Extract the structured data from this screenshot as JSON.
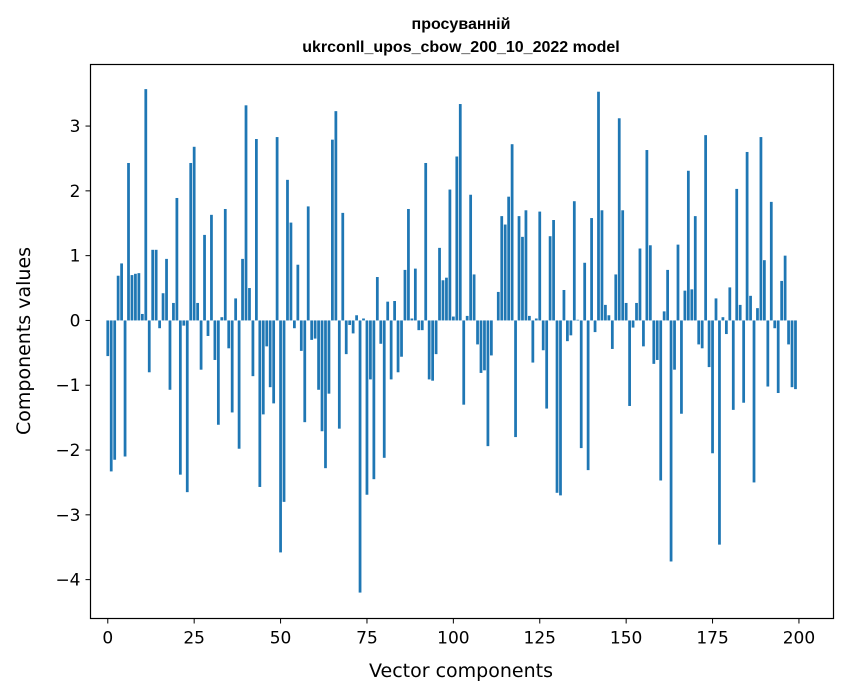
{
  "chart_data": {
    "type": "bar",
    "title_line1": "просуванній",
    "title_line2": "ukrconll_upos_cbow_200_10_2022 model",
    "xlabel": "Vector components",
    "ylabel": "Components values",
    "xlim": [
      -5,
      210
    ],
    "ylim": [
      -4.6,
      3.95
    ],
    "xticks": [
      0,
      25,
      50,
      75,
      100,
      125,
      150,
      175,
      200
    ],
    "xtick_labels": [
      "0",
      "25",
      "50",
      "75",
      "100",
      "125",
      "150",
      "175",
      "200"
    ],
    "yticks": [
      -4,
      -3,
      -2,
      -1,
      0,
      1,
      2,
      3
    ],
    "ytick_labels": [
      "−4",
      "−3",
      "−2",
      "−1",
      "0",
      "1",
      "2",
      "3"
    ],
    "bar_color": "#1f77b4",
    "x": [
      0,
      1,
      2,
      3,
      4,
      5,
      6,
      7,
      8,
      9,
      10,
      11,
      12,
      13,
      14,
      15,
      16,
      17,
      18,
      19,
      20,
      21,
      22,
      23,
      24,
      25,
      26,
      27,
      28,
      29,
      30,
      31,
      32,
      33,
      34,
      35,
      36,
      37,
      38,
      39,
      40,
      41,
      42,
      43,
      44,
      45,
      46,
      47,
      48,
      49,
      50,
      51,
      52,
      53,
      54,
      55,
      56,
      57,
      58,
      59,
      60,
      61,
      62,
      63,
      64,
      65,
      66,
      67,
      68,
      69,
      70,
      71,
      72,
      73,
      74,
      75,
      76,
      77,
      78,
      79,
      80,
      81,
      82,
      83,
      84,
      85,
      86,
      87,
      88,
      89,
      90,
      91,
      92,
      93,
      94,
      95,
      96,
      97,
      98,
      99,
      100,
      101,
      102,
      103,
      104,
      105,
      106,
      107,
      108,
      109,
      110,
      111,
      112,
      113,
      114,
      115,
      116,
      117,
      118,
      119,
      120,
      121,
      122,
      123,
      124,
      125,
      126,
      127,
      128,
      129,
      130,
      131,
      132,
      133,
      134,
      135,
      136,
      137,
      138,
      139,
      140,
      141,
      142,
      143,
      144,
      145,
      146,
      147,
      148,
      149,
      150,
      151,
      152,
      153,
      154,
      155,
      156,
      157,
      158,
      159,
      160,
      161,
      162,
      163,
      164,
      165,
      166,
      167,
      168,
      169,
      170,
      171,
      172,
      173,
      174,
      175,
      176,
      177,
      178,
      179,
      180,
      181,
      182,
      183,
      184,
      185,
      186,
      187,
      188,
      189,
      190,
      191,
      192,
      193,
      194,
      195,
      196,
      197,
      198,
      199
    ],
    "values": [
      -0.55,
      -2.33,
      -2.15,
      0.69,
      0.88,
      -2.1,
      2.43,
      0.7,
      0.72,
      0.73,
      0.1,
      3.57,
      -0.8,
      1.09,
      1.09,
      -0.12,
      0.42,
      0.95,
      -1.07,
      0.27,
      1.89,
      -2.38,
      -0.08,
      -2.65,
      2.43,
      2.68,
      0.27,
      -0.76,
      1.32,
      -0.24,
      1.63,
      -0.61,
      -1.61,
      0.05,
      1.72,
      -0.43,
      -1.42,
      0.34,
      -1.98,
      0.95,
      3.32,
      0.5,
      -0.86,
      2.8,
      -2.57,
      -1.45,
      -0.4,
      -1.03,
      -1.28,
      2.83,
      -3.58,
      -2.8,
      2.17,
      1.51,
      -0.12,
      0.86,
      -0.47,
      -1.57,
      1.76,
      -0.3,
      -0.28,
      -1.07,
      -1.71,
      -2.28,
      -1.13,
      2.79,
      3.23,
      -1.67,
      1.66,
      -0.52,
      -0.07,
      -0.2,
      0.08,
      -4.2,
      0.03,
      -2.69,
      -0.91,
      -2.45,
      0.67,
      -0.36,
      -2.12,
      0.29,
      -0.91,
      0.3,
      -0.8,
      -0.56,
      0.78,
      1.72,
      0.03,
      0.8,
      -0.15,
      -0.15,
      2.43,
      -0.91,
      -0.93,
      -0.52,
      1.12,
      0.62,
      0.66,
      2.02,
      0.06,
      2.53,
      3.34,
      -1.3,
      0.07,
      1.94,
      0.71,
      -0.37,
      -0.81,
      -0.77,
      -1.94,
      -0.54,
      0.0,
      0.44,
      1.61,
      1.48,
      1.91,
      2.72,
      -1.8,
      1.61,
      1.29,
      1.7,
      0.07,
      -0.65,
      0.03,
      1.68,
      -0.46,
      -1.36,
      1.3,
      1.55,
      -2.66,
      -2.7,
      0.47,
      -0.32,
      -0.23,
      1.84,
      0.01,
      -1.97,
      0.89,
      -2.31,
      1.58,
      -0.18,
      3.53,
      1.7,
      0.24,
      0.08,
      -0.44,
      0.71,
      3.12,
      1.7,
      0.27,
      -1.32,
      -0.11,
      0.27,
      1.11,
      -0.4,
      2.63,
      1.16,
      -0.67,
      -0.61,
      -2.47,
      0.14,
      0.78,
      -3.72,
      -0.76,
      1.17,
      -1.44,
      0.46,
      2.31,
      0.48,
      1.61,
      -0.37,
      -0.43,
      2.86,
      -0.72,
      -2.05,
      0.34,
      -3.46,
      0.05,
      -0.21,
      0.51,
      -1.38,
      2.03,
      0.24,
      -1.27,
      2.6,
      0.38,
      -2.5,
      0.19,
      2.83,
      0.93,
      -1.02,
      1.83,
      -0.12,
      -1.12,
      0.61,
      1.0,
      -0.37,
      -1.03,
      -1.06
    ]
  }
}
